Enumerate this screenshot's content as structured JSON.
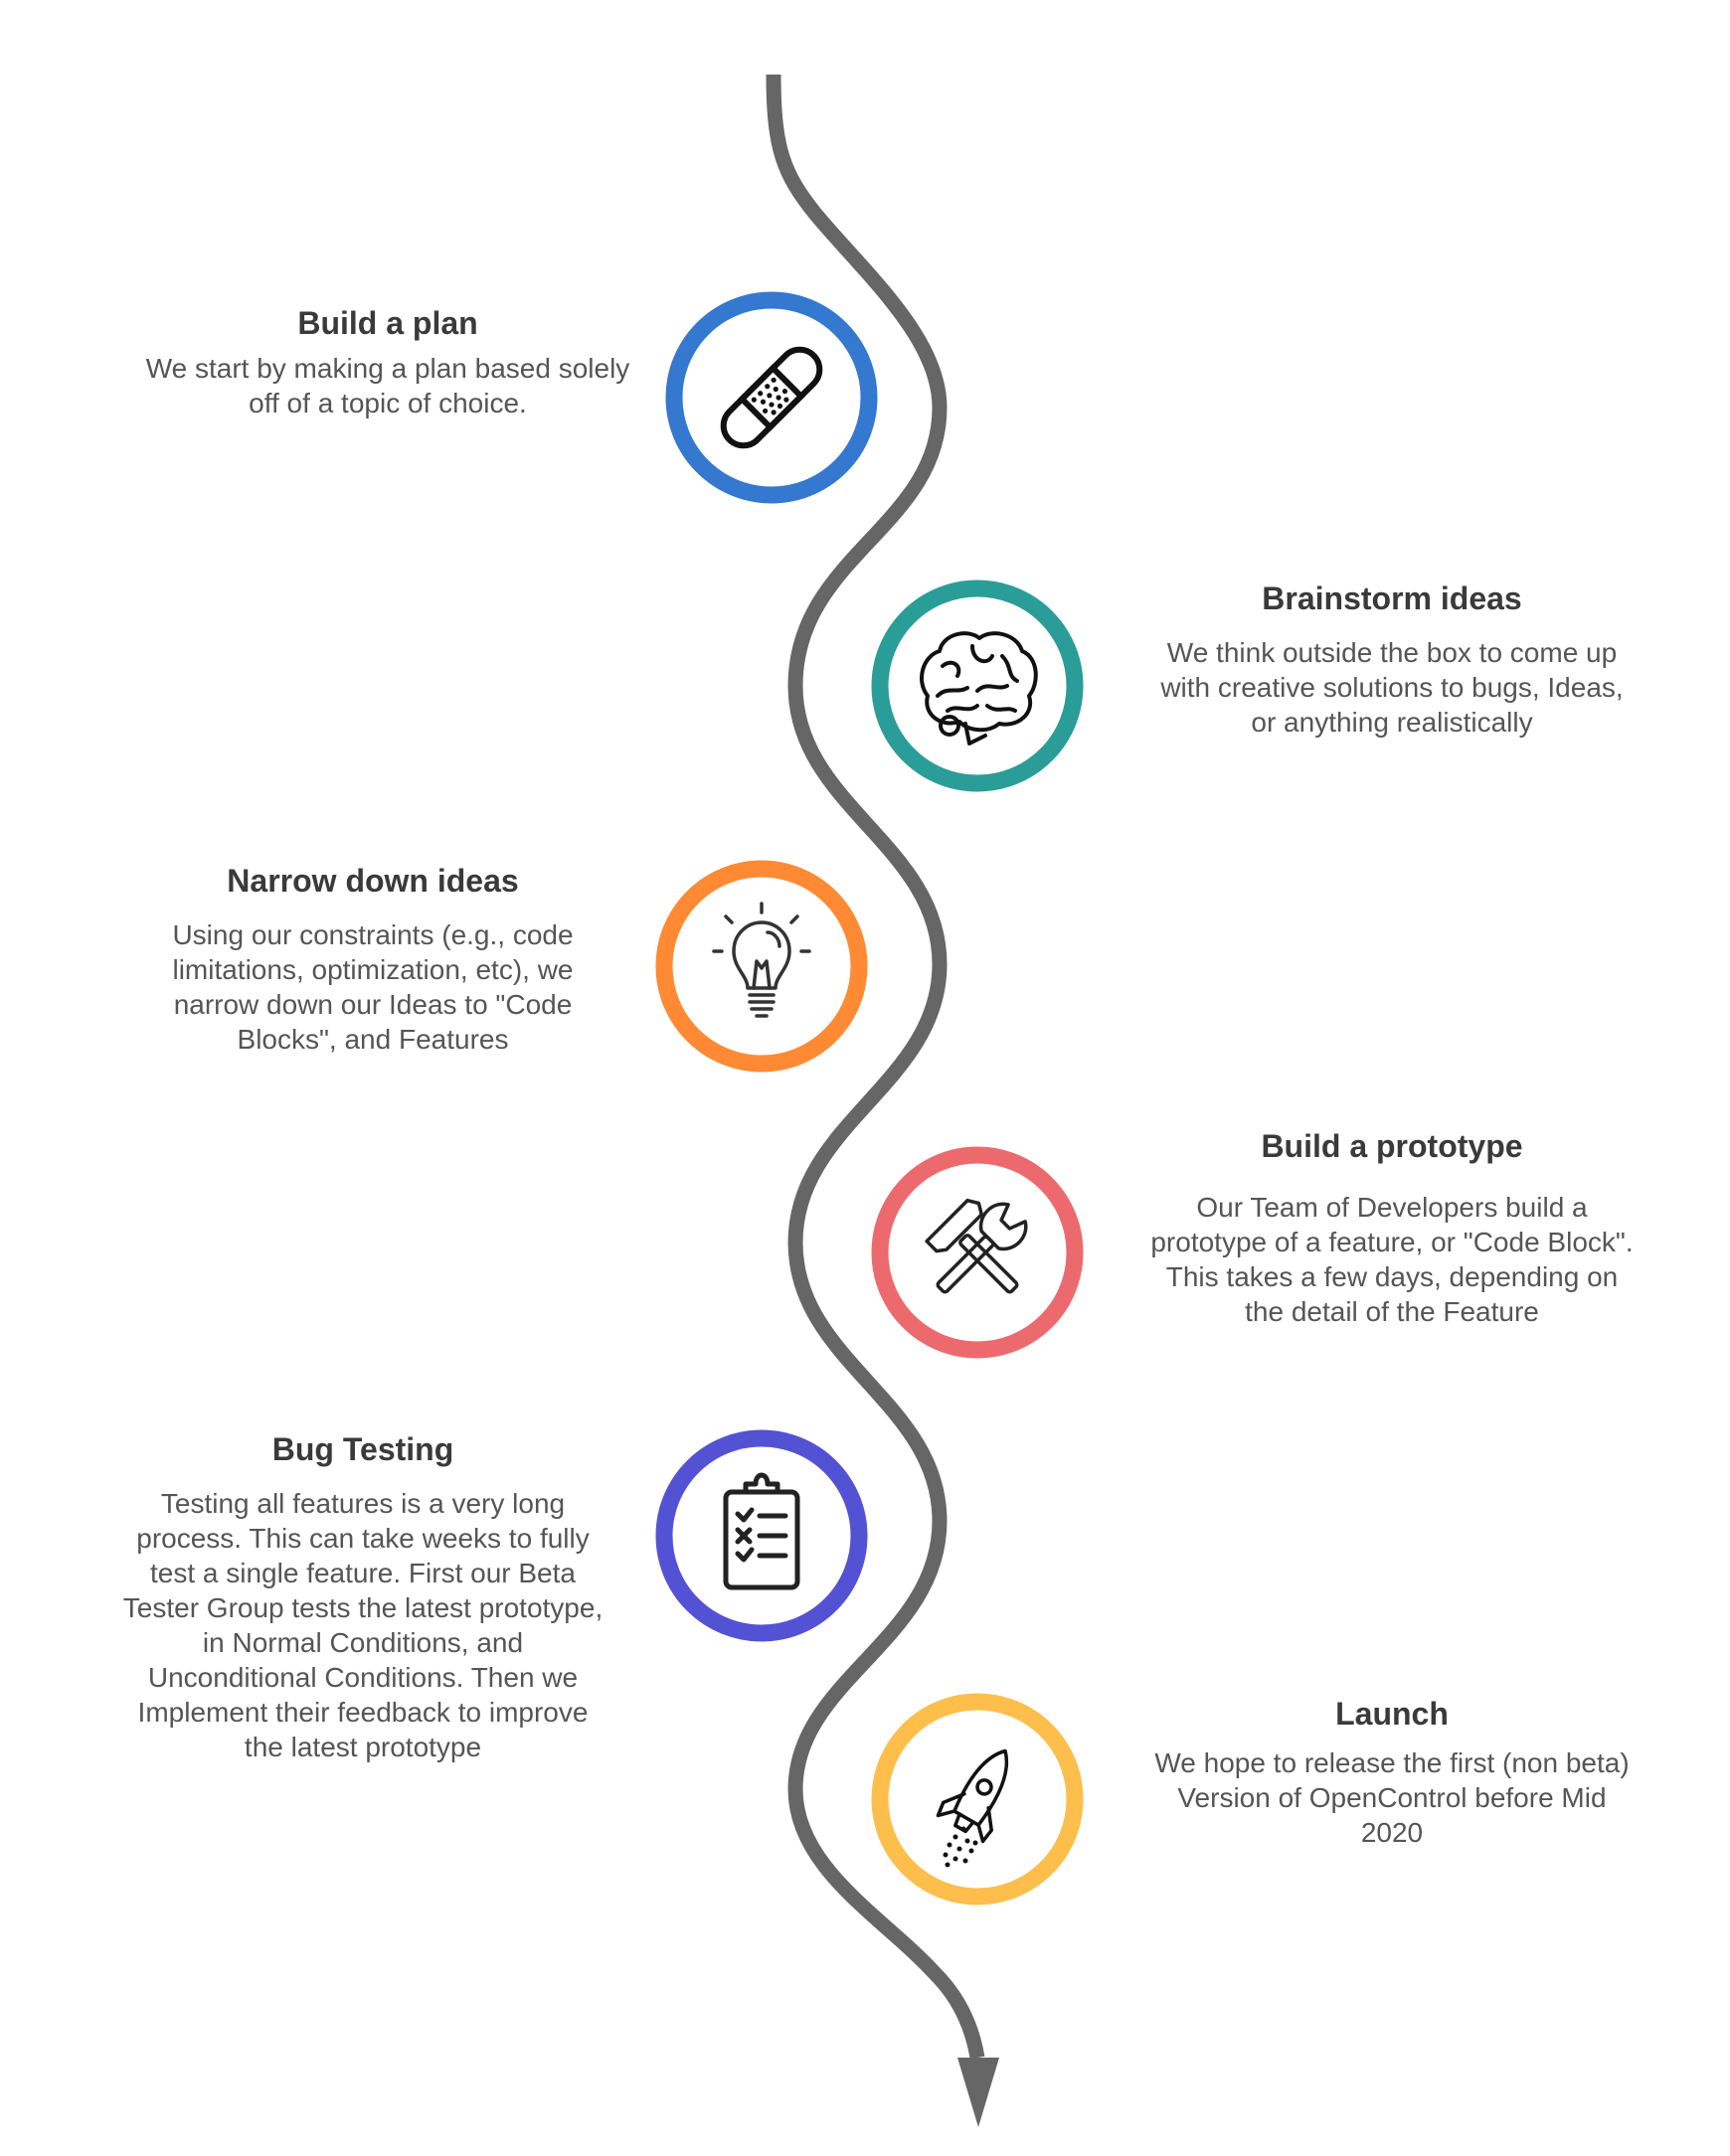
{
  "steps": [
    {
      "id": "plan",
      "title": "Build a plan",
      "description": "We start by making a plan based solely\noff of a topic of choice.",
      "color": "#3478CF",
      "icon": "bandage-icon"
    },
    {
      "id": "brainstorm",
      "title": "Brainstorm ideas",
      "description": "We think outside the box to come up\nwith creative solutions to bugs, Ideas,\nor anything realistically",
      "color": "#2A9D98",
      "icon": "brain-icon"
    },
    {
      "id": "narrow",
      "title": "Narrow down ideas",
      "description": "Using our constraints (e.g., code\nlimitations, optimization, etc), we\nnarrow down our Ideas to \"Code\nBlocks\", and Features",
      "color": "#FF8A33",
      "icon": "lightbulb-icon"
    },
    {
      "id": "prototype",
      "title": "Build a prototype",
      "description": "Our Team of Developers build a\nprototype of a feature, or \"Code Block\".\nThis takes a few days, depending on\nthe detail of the Feature",
      "color": "#EC6A6E",
      "icon": "hammer-wrench-icon"
    },
    {
      "id": "testing",
      "title": "Bug Testing",
      "description": "Testing all features is a very long\nprocess. This can take weeks to fully\ntest a single feature. First our Beta\nTester Group tests the latest prototype,\nin Normal Conditions, and\nUnconditional Conditions. Then we\nImplement their feedback to improve\nthe latest prototype",
      "color": "#5452D4",
      "icon": "clipboard-checklist-icon"
    },
    {
      "id": "launch",
      "title": "Launch",
      "description": "We hope to release the first (non beta)\nVersion of OpenControl before Mid\n2020",
      "color": "#FDBE4C",
      "icon": "rocket-icon"
    }
  ],
  "path_color": "#666666"
}
